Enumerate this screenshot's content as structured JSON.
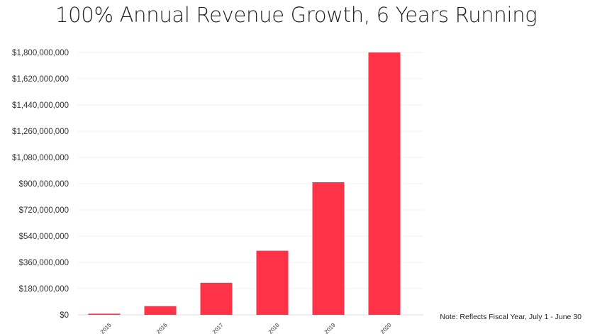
{
  "chart_data": {
    "type": "bar",
    "title": "100% Annual Revenue Growth, 6 Years Running",
    "xlabel": "",
    "ylabel": "",
    "categories": [
      "2015",
      "2016",
      "2017",
      "2018",
      "2019",
      "2020"
    ],
    "values": [
      8000000,
      60000000,
      220000000,
      440000000,
      910000000,
      1800000000
    ],
    "ylim": [
      0,
      1800000000
    ],
    "yticks": [
      "$0",
      "$180,000,000",
      "$360,000,000",
      "$540,000,000",
      "$720,000,000",
      "$900,000,000",
      "$1,080,000,000",
      "$1,260,000,000",
      "$1,440,000,000",
      "$1,620,000,000",
      "$1,800,000,000"
    ],
    "ytick_values": [
      0,
      180000000,
      360000000,
      540000000,
      720000000,
      900000000,
      1080000000,
      1260000000,
      1440000000,
      1620000000,
      1800000000
    ],
    "bar_color": "#ff3347",
    "grid": true,
    "legend": "none",
    "note": "Note: Reflects Fiscal Year, July 1 - June 30"
  }
}
